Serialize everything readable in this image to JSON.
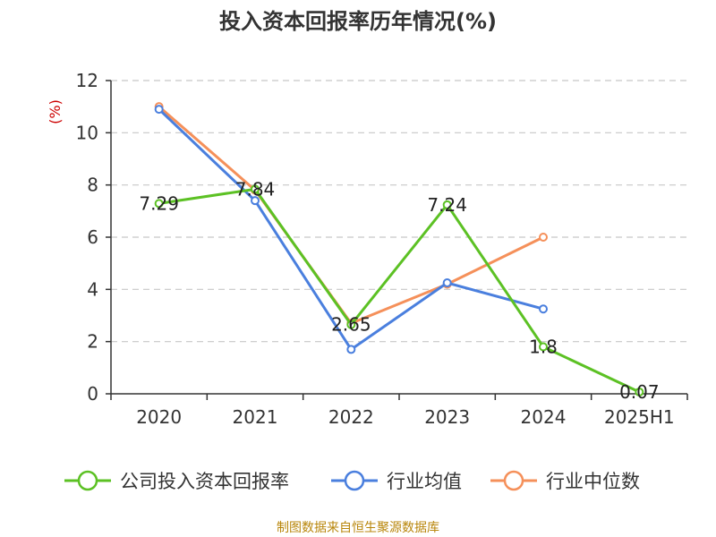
{
  "chart_data": {
    "type": "line",
    "title": "投入资本回报率历年情况(%)",
    "ylabel": "(%)",
    "xlabel": "",
    "categories": [
      "2020",
      "2021",
      "2022",
      "2023",
      "2024",
      "2025H1"
    ],
    "yticks": [
      "0",
      "2",
      "4",
      "6",
      "8",
      "10",
      "12"
    ],
    "ylim": [
      0,
      12
    ],
    "grid": true,
    "legend_position": "bottom",
    "series": [
      {
        "name": "公司投入资本回报率",
        "color": "#5cc124",
        "values": [
          7.29,
          7.84,
          2.65,
          7.24,
          1.8,
          0.07
        ],
        "labels": [
          "7.29",
          "7.84",
          "2.65",
          "7.24",
          "1.8",
          "0.07"
        ]
      },
      {
        "name": "行业均值",
        "color": "#4a7fde",
        "values": [
          10.9,
          7.4,
          1.7,
          4.25,
          3.25,
          null
        ]
      },
      {
        "name": "行业中位数",
        "color": "#f5905a",
        "values": [
          11.0,
          7.8,
          2.7,
          4.2,
          6.0,
          null
        ]
      }
    ],
    "source": "制图数据来自恒生聚源数据库"
  }
}
